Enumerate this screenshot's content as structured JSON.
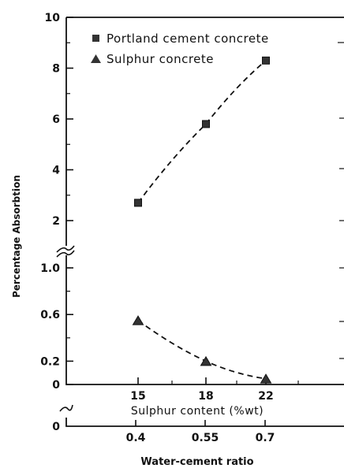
{
  "chart_data": {
    "type": "line",
    "legend_position": "top-left",
    "grid": false,
    "ylabel": "Percentage Absorbtion",
    "x_axes": [
      {
        "label": "Sulphur content (%wt)",
        "ticks": [
          "15",
          "18",
          "22"
        ]
      },
      {
        "label": "Water-cement ratio",
        "ticks": [
          "0.4",
          "0.55",
          "0.7"
        ]
      }
    ],
    "y_axis": {
      "broken": true,
      "upper_segment": {
        "range": [
          1.2,
          10
        ],
        "ticks": [
          "2",
          "4",
          "6",
          "8",
          "10"
        ]
      },
      "lower_segment": {
        "range": [
          0,
          1.2
        ],
        "ticks": [
          "0",
          "0.2",
          "0.6",
          "1.0"
        ]
      },
      "bottom_axis_zero": "0"
    },
    "series": [
      {
        "name": "Portland cement concrete",
        "marker": "square",
        "line_style": "dashed",
        "x": [
          0.4,
          0.55,
          0.7
        ],
        "y": [
          2.7,
          5.8,
          8.3
        ]
      },
      {
        "name": "Sulphur concrete",
        "marker": "triangle",
        "line_style": "dashed",
        "x": [
          15,
          18,
          22
        ],
        "y": [
          0.55,
          0.2,
          0.05
        ]
      }
    ]
  }
}
